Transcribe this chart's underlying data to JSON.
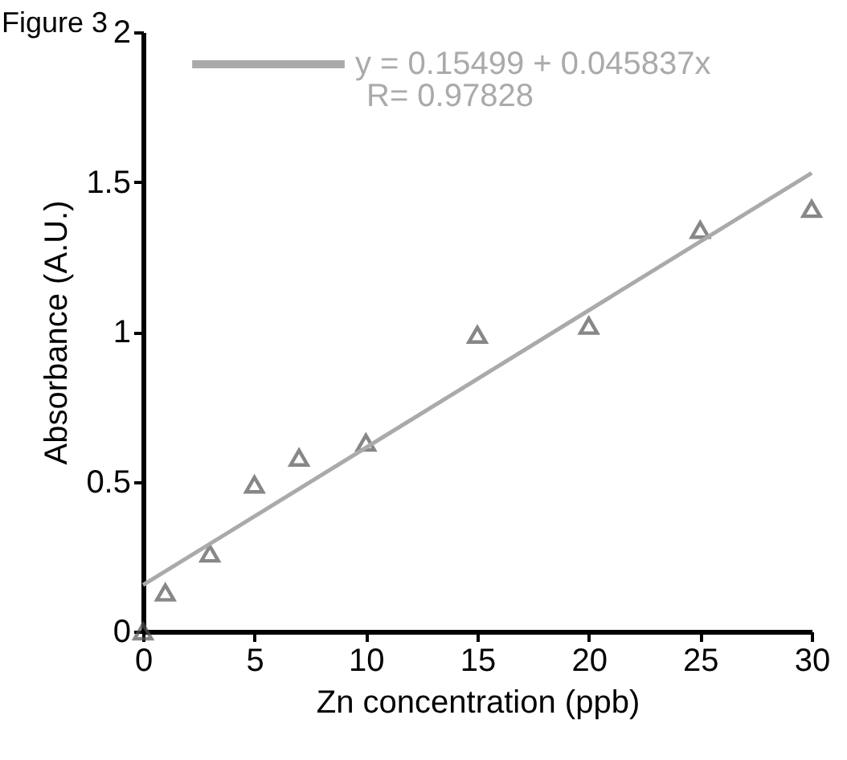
{
  "chart_data": {
    "type": "scatter",
    "title": "Figure 3",
    "xlabel": "Zn concentration (ppb)",
    "ylabel": "Absorbance (A.U.)",
    "x": [
      0,
      1,
      3,
      5,
      7,
      10,
      15,
      20,
      25,
      30
    ],
    "series": [
      {
        "color": "#555555",
        "marker": "triangle",
        "values": [
          0,
          0.13,
          0.26,
          0.49,
          0.58,
          0.63,
          0.99,
          1.02,
          1.34,
          1.41
        ]
      },
      {
        "type": "line",
        "name": "y = 0.15499 + 0.045837x",
        "color": "#aaaaaa",
        "x": [
          0,
          30
        ],
        "values": [
          0.155,
          1.53
        ],
        "line_style": "solid"
      }
    ],
    "annotations": [
      "R= 0.97828"
    ],
    "xlim": [
      0,
      30
    ],
    "xticks": [
      0,
      5,
      10,
      15,
      20,
      25,
      30
    ],
    "ylim": [
      0,
      2
    ],
    "yticks": [
      0,
      0.5,
      1,
      1.5,
      2
    ],
    "grid": false,
    "legend": "top left"
  }
}
